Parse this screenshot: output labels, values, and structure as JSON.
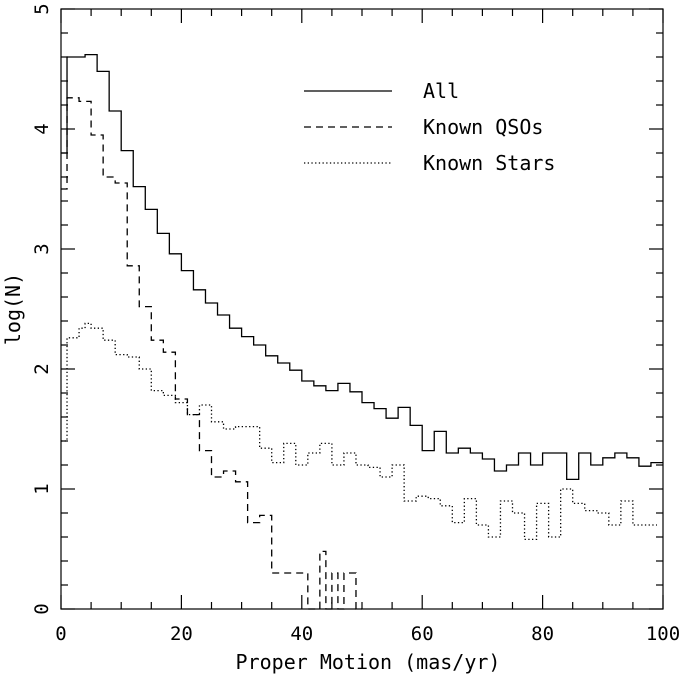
{
  "chart_data": {
    "type": "line",
    "style": "step-histogram",
    "title": "",
    "xlabel": "Proper Motion (mas/yr)",
    "ylabel": "log(N)",
    "xlim": [
      0,
      100
    ],
    "ylim": [
      0,
      5
    ],
    "xticks": [
      "0",
      "20",
      "40",
      "60",
      "80",
      "100"
    ],
    "yticks": [
      "0",
      "1",
      "2",
      "3",
      "4",
      "5"
    ],
    "grid": false,
    "legend_position": "top-right",
    "bin_edges": [
      0,
      1,
      2,
      3,
      4,
      5,
      6,
      7,
      8,
      9,
      10,
      11,
      12,
      13,
      14,
      15,
      16,
      17,
      18,
      19,
      20,
      21,
      22,
      23,
      24,
      25,
      26,
      27,
      28,
      29,
      30,
      31,
      32,
      33,
      34,
      35,
      36,
      37,
      38,
      39,
      40,
      41,
      42,
      43,
      44,
      45,
      46,
      47,
      48,
      49,
      50,
      51,
      52,
      53,
      54,
      55,
      56,
      57,
      58,
      59,
      60,
      61,
      62,
      63,
      64,
      65,
      66,
      67,
      68,
      69,
      70,
      71,
      72,
      73,
      74,
      75,
      76,
      77,
      78,
      79,
      80,
      81,
      82,
      83,
      84,
      85,
      86,
      87,
      88,
      89,
      90,
      91,
      92,
      93,
      94,
      95,
      96,
      97,
      98,
      99,
      100
    ],
    "series": [
      {
        "name": "All",
        "dash": "solid",
        "values": [
          3.8,
          4.6,
          4.6,
          4.6,
          4.62,
          4.62,
          4.48,
          4.48,
          4.15,
          4.15,
          3.82,
          3.82,
          3.52,
          3.52,
          3.33,
          3.33,
          3.13,
          3.13,
          2.96,
          2.96,
          2.82,
          2.82,
          2.66,
          2.66,
          2.55,
          2.55,
          2.45,
          2.45,
          2.34,
          2.34,
          2.27,
          2.27,
          2.2,
          2.2,
          2.11,
          2.11,
          2.05,
          2.05,
          1.99,
          1.99,
          1.9,
          1.9,
          1.86,
          1.86,
          1.82,
          1.82,
          1.88,
          1.88,
          1.81,
          1.81,
          1.72,
          1.72,
          1.67,
          1.67,
          1.59,
          1.59,
          1.68,
          1.68,
          1.53,
          1.53,
          1.32,
          1.32,
          1.48,
          1.48,
          1.3,
          1.3,
          1.34,
          1.34,
          1.3,
          1.3,
          1.25,
          1.25,
          1.15,
          1.15,
          1.2,
          1.2,
          1.3,
          1.3,
          1.2,
          1.2,
          1.3,
          1.3,
          1.3,
          1.3,
          1.08,
          1.08,
          1.3,
          1.3,
          1.2,
          1.2,
          1.26,
          1.26,
          1.3,
          1.3,
          1.26,
          1.26,
          1.19,
          1.19,
          1.22,
          1.22
        ]
      },
      {
        "name": "Known QSOs",
        "dash": "dashed",
        "values": [
          3.5,
          4.26,
          4.26,
          4.23,
          4.23,
          3.95,
          3.95,
          3.6,
          3.6,
          3.55,
          3.55,
          2.86,
          2.86,
          2.52,
          2.52,
          2.24,
          2.24,
          2.14,
          2.14,
          1.75,
          1.75,
          1.62,
          1.62,
          1.32,
          1.32,
          1.1,
          1.1,
          1.15,
          1.15,
          1.06,
          1.06,
          0.72,
          0.72,
          0.78,
          0.78,
          0.3,
          0.3,
          0.3,
          0.3,
          0.3,
          0.3,
          0.0,
          0.0,
          0.48,
          0.0,
          0.3,
          0.0,
          0.3,
          0.3,
          0.0,
          null,
          null,
          null,
          null,
          null,
          null,
          null,
          null,
          null,
          null,
          null,
          null,
          null,
          null,
          null,
          null,
          null,
          null,
          null,
          null,
          null,
          null,
          null,
          null,
          null,
          null,
          null,
          null,
          null,
          null,
          null,
          null,
          null,
          null,
          null,
          null,
          null,
          null,
          null,
          null,
          null,
          null,
          null,
          null,
          null,
          null,
          null,
          null,
          null,
          null
        ]
      },
      {
        "name": "Known Stars",
        "dash": "dotted",
        "values": [
          1.4,
          2.26,
          2.26,
          2.34,
          2.38,
          2.34,
          2.34,
          2.24,
          2.24,
          2.12,
          2.12,
          2.1,
          2.1,
          2.0,
          2.0,
          1.82,
          1.82,
          1.78,
          1.78,
          1.72,
          1.72,
          1.62,
          1.62,
          1.7,
          1.7,
          1.56,
          1.56,
          1.5,
          1.5,
          1.52,
          1.52,
          1.52,
          1.52,
          1.34,
          1.34,
          1.22,
          1.22,
          1.38,
          1.38,
          1.2,
          1.2,
          1.3,
          1.3,
          1.38,
          1.38,
          1.2,
          1.2,
          1.3,
          1.3,
          1.2,
          1.2,
          1.18,
          1.18,
          1.1,
          1.1,
          1.2,
          1.2,
          0.9,
          0.9,
          0.94,
          0.94,
          0.92,
          0.92,
          0.86,
          0.86,
          0.72,
          0.72,
          0.92,
          0.92,
          0.7,
          0.7,
          0.6,
          0.6,
          0.9,
          0.9,
          0.8,
          0.8,
          0.58,
          0.58,
          0.88,
          0.88,
          0.6,
          0.6,
          1.0,
          1.0,
          0.88,
          0.88,
          0.82,
          0.82,
          0.8,
          0.8,
          0.7,
          0.7,
          0.9,
          0.9,
          0.7,
          0.7,
          0.7,
          0.7
        ]
      }
    ]
  }
}
